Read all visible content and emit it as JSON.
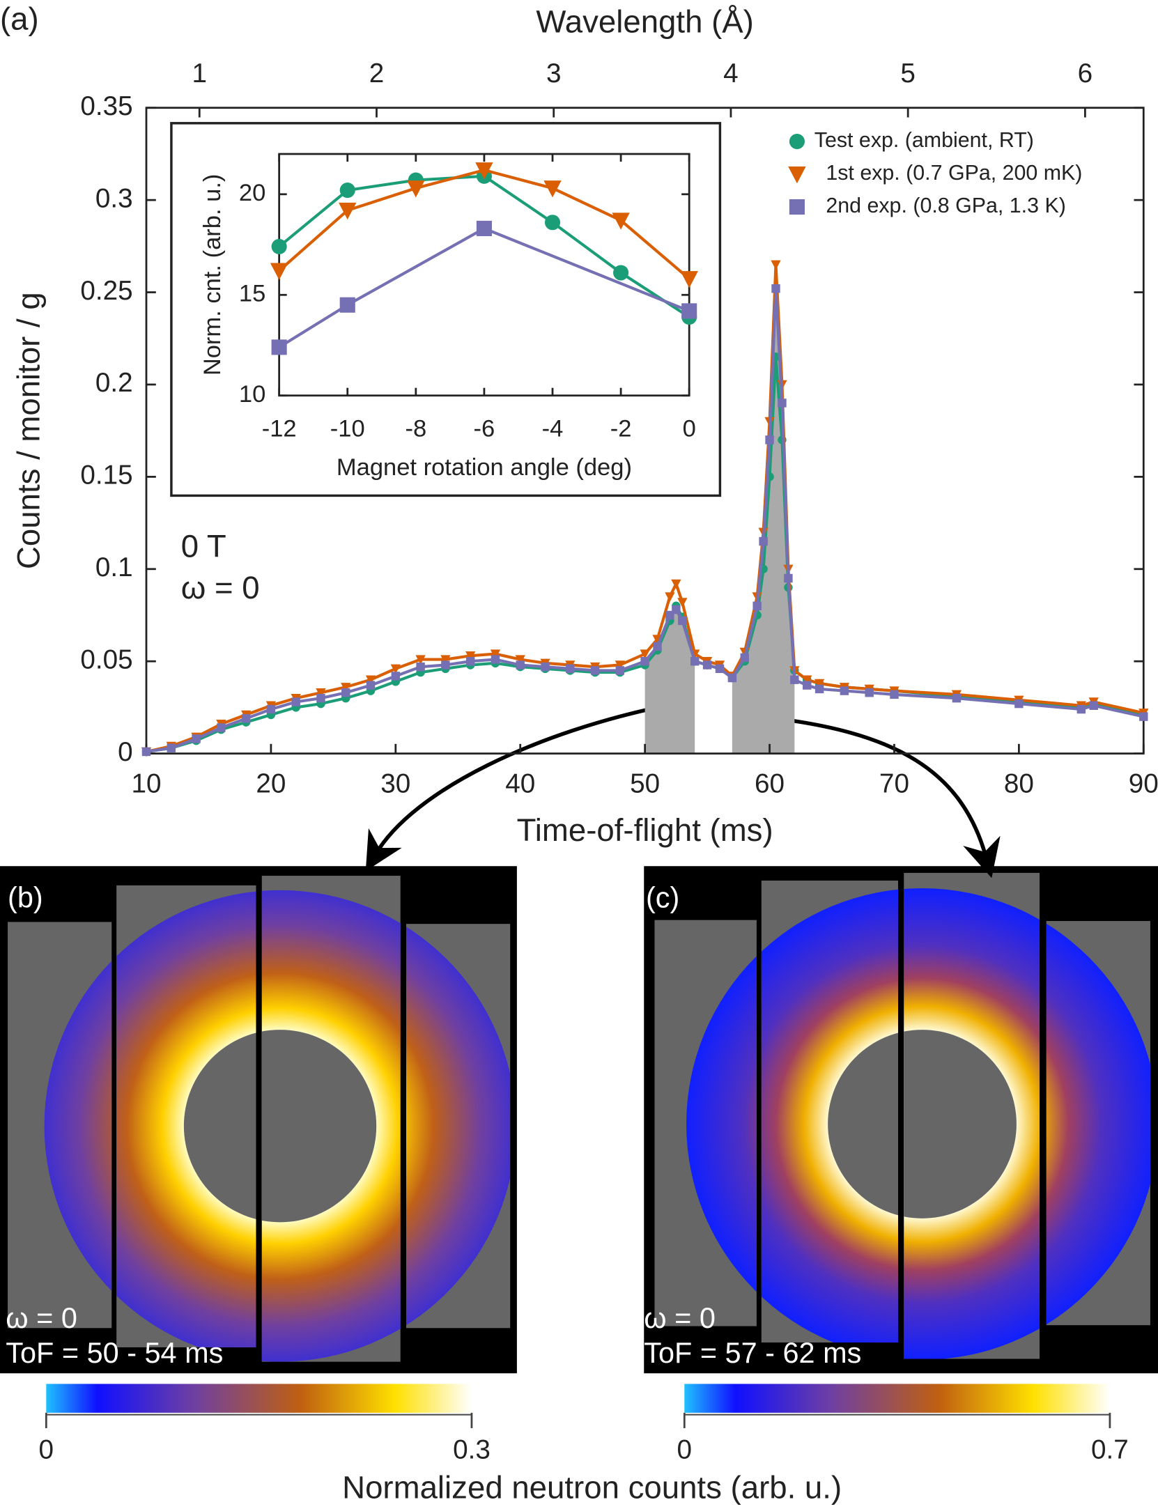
{
  "figure": {
    "colorbar_label": "Normalized neutron counts (arb. u.)"
  },
  "chart_data": [
    {
      "type": "line",
      "panel_label": "(a)",
      "xlabel": "Time-of-flight (ms)",
      "ylabel": "Counts / monitor / g",
      "x2label": "Wavelength (Å)",
      "xlim": [
        10,
        90
      ],
      "xticks": [
        10,
        20,
        30,
        40,
        50,
        60,
        70,
        80,
        90
      ],
      "ylim": [
        0,
        0.35
      ],
      "yticks": [
        0,
        0.05,
        0.1,
        0.15,
        0.2,
        0.25,
        0.3,
        0.35
      ],
      "x2lim": [
        0.7,
        6.33
      ],
      "x2ticks": [
        1,
        2,
        3,
        4,
        5,
        6
      ],
      "annotations": [
        "0 T",
        "ω = 0"
      ],
      "legend": "upper right",
      "shaded": [
        [
          50,
          54
        ],
        [
          57,
          62
        ]
      ],
      "x": [
        10,
        12,
        14,
        16,
        18,
        20,
        22,
        24,
        26,
        28,
        30,
        32,
        34,
        36,
        38,
        40,
        42,
        44,
        46,
        48,
        50,
        51,
        52,
        52.5,
        53,
        54,
        55,
        56,
        57,
        58,
        59,
        59.5,
        60,
        60.5,
        61,
        61.5,
        62,
        63,
        64,
        66,
        68,
        70,
        75,
        80,
        85,
        86,
        90
      ],
      "series": [
        {
          "name": "Test exp. (ambient, RT)",
          "color": "#1b9e77",
          "marker": "circle",
          "values": [
            0.001,
            0.003,
            0.007,
            0.013,
            0.017,
            0.021,
            0.025,
            0.027,
            0.03,
            0.034,
            0.039,
            0.044,
            0.046,
            0.048,
            0.049,
            0.047,
            0.046,
            0.045,
            0.044,
            0.044,
            0.048,
            0.056,
            0.072,
            0.08,
            0.074,
            0.05,
            0.048,
            0.046,
            0.041,
            0.05,
            0.075,
            0.1,
            0.15,
            0.215,
            0.17,
            0.09,
            0.045,
            0.04,
            0.038,
            0.036,
            0.035,
            0.034,
            0.031,
            0.028,
            0.025,
            0.027,
            0.021
          ]
        },
        {
          "name": "1st exp. (0.7 GPa, 200 mK)",
          "color": "#d95f02",
          "marker": "triangle",
          "values": [
            0.001,
            0.004,
            0.009,
            0.016,
            0.021,
            0.026,
            0.03,
            0.033,
            0.036,
            0.04,
            0.046,
            0.051,
            0.051,
            0.053,
            0.054,
            0.051,
            0.049,
            0.048,
            0.047,
            0.048,
            0.054,
            0.062,
            0.085,
            0.092,
            0.082,
            0.054,
            0.05,
            0.048,
            0.042,
            0.055,
            0.085,
            0.12,
            0.18,
            0.265,
            0.2,
            0.1,
            0.045,
            0.04,
            0.038,
            0.036,
            0.035,
            0.034,
            0.032,
            0.029,
            0.026,
            0.028,
            0.022
          ]
        },
        {
          "name": "2nd exp. (0.8 GPa, 1.3 K)",
          "color": "#7570b3",
          "marker": "square",
          "values": [
            0.001,
            0.003,
            0.008,
            0.014,
            0.019,
            0.024,
            0.028,
            0.03,
            0.033,
            0.037,
            0.042,
            0.047,
            0.048,
            0.05,
            0.051,
            0.048,
            0.047,
            0.046,
            0.045,
            0.045,
            0.05,
            0.058,
            0.075,
            0.078,
            0.072,
            0.05,
            0.048,
            0.046,
            0.041,
            0.052,
            0.08,
            0.115,
            0.17,
            0.252,
            0.19,
            0.095,
            0.04,
            0.037,
            0.035,
            0.034,
            0.033,
            0.032,
            0.03,
            0.027,
            0.024,
            0.026,
            0.02
          ]
        }
      ]
    },
    {
      "type": "line",
      "xlabel": "Magnet rotation angle (deg)",
      "ylabel": "Norm. cnt. (arb. u.)",
      "xlim": [
        -12,
        0
      ],
      "xticks": [
        -12,
        -10,
        -8,
        -6,
        -4,
        -2,
        0
      ],
      "ylim": [
        10,
        22
      ],
      "yticks": [
        10,
        15,
        20
      ],
      "series": [
        {
          "color": "#1b9e77",
          "marker": "circle",
          "x": [
            -12,
            -10,
            -8,
            -6,
            -4,
            -2,
            0
          ],
          "values": [
            17.4,
            20.2,
            20.7,
            20.9,
            18.6,
            16.1,
            13.9
          ]
        },
        {
          "color": "#d95f02",
          "marker": "triangle",
          "x": [
            -12,
            -10,
            -8,
            -6,
            -4,
            -2,
            0
          ],
          "values": [
            16.2,
            19.2,
            20.3,
            21.2,
            20.3,
            18.7,
            15.8
          ]
        },
        {
          "color": "#7570b3",
          "marker": "square",
          "x": [
            -12,
            -10,
            -6,
            0
          ],
          "values": [
            12.4,
            14.5,
            18.3,
            14.2
          ]
        }
      ]
    },
    {
      "type": "heatmap",
      "panel_label": "(b)",
      "annotations": [
        "ω = 0",
        "ToF = 50 - 54 ms"
      ],
      "colorbar": {
        "lim": [
          0,
          0.3
        ],
        "ticks": [
          0,
          0.3
        ]
      }
    },
    {
      "type": "heatmap",
      "panel_label": "(c)",
      "annotations": [
        "ω = 0",
        "ToF = 57 - 62 ms"
      ],
      "colorbar": {
        "lim": [
          0,
          0.7
        ],
        "ticks": [
          0,
          0.7
        ]
      }
    }
  ]
}
